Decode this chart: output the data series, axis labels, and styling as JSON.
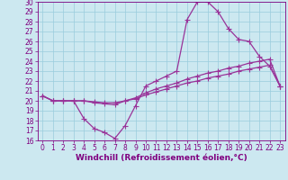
{
  "xlabel": "Windchill (Refroidissement éolien,°C)",
  "bg_color": "#cce8f0",
  "grid_color": "#99ccdd",
  "line_color": "#993399",
  "xlim": [
    -0.5,
    23.5
  ],
  "ylim": [
    16,
    30
  ],
  "xticks": [
    0,
    1,
    2,
    3,
    4,
    5,
    6,
    7,
    8,
    9,
    10,
    11,
    12,
    13,
    14,
    15,
    16,
    17,
    18,
    19,
    20,
    21,
    22,
    23
  ],
  "yticks": [
    16,
    17,
    18,
    19,
    20,
    21,
    22,
    23,
    24,
    25,
    26,
    27,
    28,
    29,
    30
  ],
  "line1_x": [
    0,
    1,
    2,
    3,
    4,
    5,
    6,
    7,
    8,
    9,
    10,
    11,
    12,
    13,
    14,
    15,
    16,
    17,
    18,
    19,
    20,
    21,
    22,
    23
  ],
  "line1_y": [
    20.5,
    20.0,
    20.0,
    20.0,
    18.2,
    17.2,
    16.8,
    16.2,
    17.5,
    19.5,
    21.5,
    22.0,
    22.5,
    23.0,
    28.2,
    30.0,
    30.0,
    29.0,
    27.3,
    26.2,
    26.0,
    24.5,
    23.5,
    21.5
  ],
  "line2_x": [
    0,
    1,
    2,
    3,
    4,
    5,
    6,
    7,
    8,
    9,
    10,
    11,
    12,
    13,
    14,
    15,
    16,
    17,
    18,
    19,
    20,
    21,
    22,
    23
  ],
  "line2_y": [
    20.5,
    20.0,
    20.0,
    20.0,
    20.0,
    19.8,
    19.7,
    19.6,
    20.0,
    20.3,
    20.8,
    21.2,
    21.5,
    21.8,
    22.2,
    22.5,
    22.8,
    23.0,
    23.3,
    23.5,
    23.8,
    24.0,
    24.2,
    21.5
  ],
  "line3_x": [
    0,
    1,
    2,
    3,
    4,
    5,
    6,
    7,
    8,
    9,
    10,
    11,
    12,
    13,
    14,
    15,
    16,
    17,
    18,
    19,
    20,
    21,
    22,
    23
  ],
  "line3_y": [
    20.5,
    20.0,
    20.0,
    20.0,
    20.0,
    19.9,
    19.8,
    19.8,
    20.0,
    20.2,
    20.6,
    20.9,
    21.2,
    21.5,
    21.8,
    22.0,
    22.3,
    22.5,
    22.7,
    23.0,
    23.2,
    23.4,
    23.6,
    21.5
  ],
  "marker": "+",
  "markersize": 4,
  "linewidth": 0.9,
  "font_color": "#800080",
  "axis_label_fontsize": 6.5,
  "tick_fontsize": 5.5
}
